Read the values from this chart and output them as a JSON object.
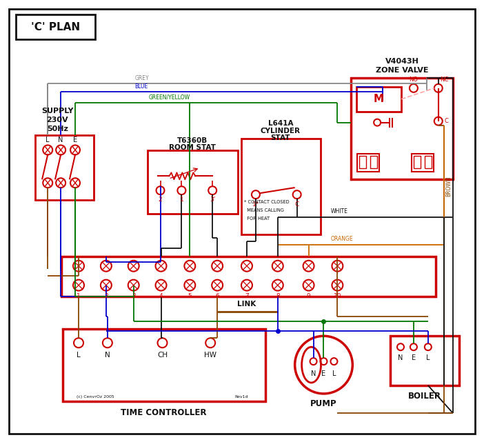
{
  "bg": "#ffffff",
  "red": "#cc0000",
  "blue": "#0000cc",
  "green": "#007700",
  "brown": "#884400",
  "grey": "#888888",
  "orange": "#cc6600",
  "black": "#111111",
  "pink": "#ffaaaa",
  "title": "'C' PLAN",
  "zv_l1": "V4043H",
  "zv_l2": "ZONE VALVE",
  "rs_l1": "T6360B",
  "rs_l2": "ROOM STAT",
  "cs_l1": "L641A",
  "cs_l2": "CYLINDER",
  "cs_l3": "STAT",
  "tc_lbl": "TIME CONTROLLER",
  "pump_lbl": "PUMP",
  "boiler_lbl": "BOILER",
  "link_lbl": "LINK",
  "fn1": "* CONTACT CLOSED",
  "fn2": "  MEANS CALLING",
  "fn3": "  FOR HEAT",
  "copyright": "(c) CenvrOz 2005",
  "rev": "Rev1d",
  "s1": "SUPPLY",
  "s2": "230V",
  "s3": "50Hz",
  "grey_lbl": "GREY",
  "blue_lbl": "BLUE",
  "gy_lbl": "GREEN/YELLOW",
  "brown_lbl": "BROWN",
  "white_lbl": "WHITE",
  "orange_lbl": "ORANGE"
}
